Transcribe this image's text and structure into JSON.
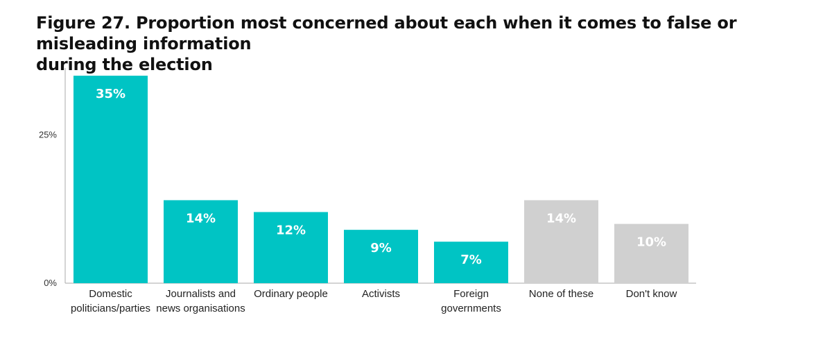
{
  "figure": {
    "title_line1": "Figure 27. Proportion most concerned about each when it comes to false or misleading information",
    "title_line2": "during the election"
  },
  "colors": {
    "primary": "#00C4C4",
    "neutral": "#D0D0D0",
    "axis": "#AAAAAA"
  },
  "chart_data": {
    "type": "bar",
    "title": "Figure 27. Proportion most concerned about each when it comes to false or misleading information during the election",
    "xlabel": "",
    "ylabel": "",
    "ylim": [
      0,
      37
    ],
    "y_ticks": [
      {
        "value": 0,
        "label": "0%"
      },
      {
        "value": 25,
        "label": "25%"
      }
    ],
    "grid": false,
    "categories": [
      [
        "Domestic",
        "politicians/parties"
      ],
      [
        "Journalists and",
        "news organisations"
      ],
      [
        "Ordinary people"
      ],
      [
        "Activists"
      ],
      [
        "Foreign",
        "governments"
      ],
      [
        "None of these"
      ],
      [
        "Don't know"
      ]
    ],
    "values": [
      35,
      14,
      12,
      9,
      7,
      14,
      10
    ],
    "data_labels": [
      "35%",
      "14%",
      "12%",
      "9%",
      "7%",
      "14%",
      "10%"
    ],
    "bar_colors": [
      "primary",
      "primary",
      "primary",
      "primary",
      "primary",
      "neutral",
      "neutral"
    ]
  }
}
